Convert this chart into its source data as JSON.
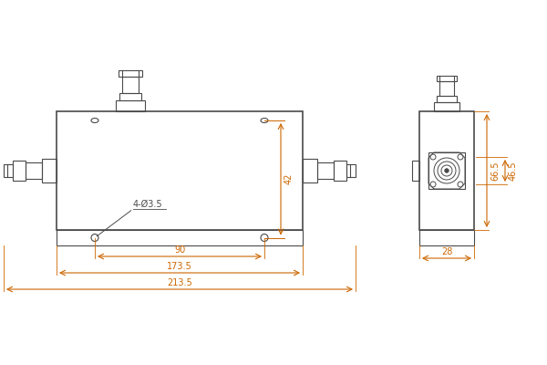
{
  "bg_color": "#ffffff",
  "line_color": "#4a4a4a",
  "dim_color": "#cc6600",
  "figsize": [
    6.0,
    4.0
  ],
  "dpi": 100,
  "dimensions": {
    "d_90": "90",
    "d_1735": "173.5",
    "d_2135": "213.5",
    "d_42": "42",
    "d_465": "46.5",
    "d_665": "66.5",
    "d_28": "28",
    "d_holes": "4-Ø3.5"
  }
}
